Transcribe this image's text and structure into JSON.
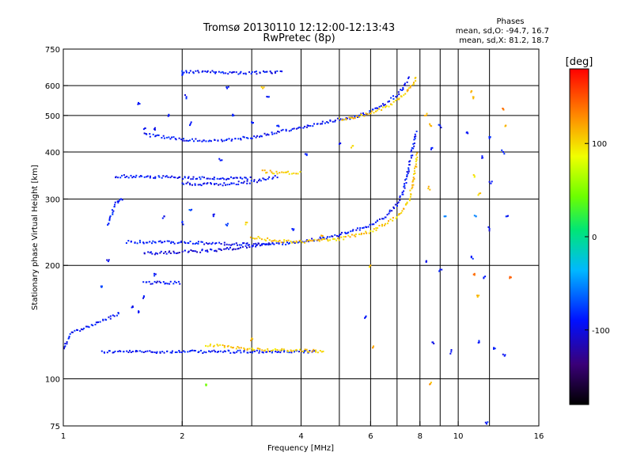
{
  "chart_data": {
    "type": "scatter",
    "title": "Tromsø 20130110 12:12:00-12:13:43",
    "subtitle": "RwPretec (8p)",
    "xlabel": "Frequency [MHz]",
    "ylabel": "Stationary phase Virtual Height [km]",
    "x_scale": "log",
    "y_scale": "log",
    "xlim": [
      1,
      16
    ],
    "ylim": [
      75,
      750
    ],
    "x_ticks": [
      1,
      2,
      4,
      6,
      8,
      10,
      16
    ],
    "x_tick_labels": [
      "1",
      "2",
      "4",
      "6",
      "8",
      "10",
      "16"
    ],
    "x_grid": [
      2,
      3,
      4,
      5,
      6,
      7,
      8,
      9,
      10,
      12
    ],
    "y_ticks": [
      75,
      100,
      200,
      300,
      400,
      500,
      600,
      750
    ],
    "y_tick_labels": [
      "75",
      "100",
      "200",
      "300",
      "400",
      "500",
      "600",
      "750"
    ],
    "y_grid": [
      100,
      200,
      300,
      400,
      500,
      600
    ],
    "grid": true,
    "phase_info": {
      "title": "Phases",
      "line_o": "mean, sd,O: -94.7, 16.7",
      "line_x": "mean, sd,X:  81.2, 18.7"
    },
    "colorbar": {
      "label": "[deg]",
      "range": [
        -180,
        180
      ],
      "ticks": [
        100,
        0,
        -100
      ],
      "tick_labels": [
        "100",
        "0",
        "-100"
      ],
      "colormap": "rainbow-black-to-red"
    },
    "traces": [
      {
        "x": [
          1.25,
          2.0,
          3.0,
          4.0,
          4.4
        ],
        "y": [
          118,
          118,
          118,
          118,
          118
        ],
        "phase": -100
      },
      {
        "x": [
          2.3,
          3.0,
          3.6,
          4.0,
          4.6
        ],
        "y": [
          123,
          120,
          119,
          119,
          118
        ],
        "phase": 110
      },
      {
        "x": [
          1.45,
          2.0,
          2.6,
          3.0,
          3.5,
          4.0,
          4.5,
          5.0,
          5.5,
          6.0,
          6.5,
          7.0,
          7.3,
          7.5,
          7.7,
          7.85
        ],
        "y": [
          231,
          230,
          228,
          227,
          228,
          231,
          236,
          241,
          248,
          256,
          268,
          290,
          320,
          365,
          415,
          455
        ],
        "phase": -100
      },
      {
        "x": [
          1.6,
          2.0,
          2.5,
          3.0,
          3.4
        ],
        "y": [
          215,
          217,
          220,
          225,
          230
        ],
        "phase": -110
      },
      {
        "x": [
          3.0,
          3.5,
          4.0,
          5.0,
          6.0,
          7.0,
          7.5,
          7.75,
          7.9
        ],
        "y": [
          238,
          232,
          231,
          235,
          246,
          268,
          298,
          345,
          400
        ],
        "phase": 110
      },
      {
        "x": [
          1.35,
          2.0,
          2.5,
          3.0
        ],
        "y": [
          345,
          342,
          340,
          340
        ],
        "phase": -100
      },
      {
        "x": [
          2.0,
          2.5,
          3.0,
          3.5
        ],
        "y": [
          330,
          328,
          333,
          345
        ],
        "phase": -105
      },
      {
        "x": [
          3.2,
          3.6,
          4.0
        ],
        "y": [
          355,
          352,
          352
        ],
        "phase": 110
      },
      {
        "x": [
          1.6,
          2.0,
          2.5,
          3.0,
          3.5,
          4.0,
          4.5,
          5.0,
          5.5,
          6.0,
          6.5,
          7.0,
          7.3,
          7.5
        ],
        "y": [
          445,
          432,
          428,
          438,
          452,
          465,
          478,
          488,
          496,
          512,
          535,
          568,
          600,
          635
        ],
        "phase": -100
      },
      {
        "x": [
          5.0,
          5.5,
          6.0,
          6.5,
          7.0,
          7.4,
          7.7,
          7.85
        ],
        "y": [
          488,
          495,
          508,
          523,
          547,
          575,
          610,
          640
        ],
        "phase": 110
      },
      {
        "x": [
          2.0,
          2.4,
          2.8,
          3.2,
          3.6
        ],
        "y": [
          652,
          652,
          648,
          650,
          652
        ],
        "phase": -100
      },
      {
        "x": [
          1.6,
          1.75,
          1.9,
          2.0
        ],
        "y": [
          180,
          180,
          180,
          180
        ],
        "phase": -105
      },
      {
        "x": [
          1.0,
          1.05,
          1.2,
          1.3,
          1.4
        ],
        "y": [
          120,
          132,
          140,
          145,
          150
        ],
        "phase": -100
      },
      {
        "x": [
          1.3,
          1.35,
          1.4
        ],
        "y": [
          255,
          290,
          300
        ],
        "phase": -100
      }
    ],
    "scattered_points": [
      {
        "x": 1.55,
        "y": 540,
        "phase": -100
      },
      {
        "x": 1.6,
        "y": 460,
        "phase": -100
      },
      {
        "x": 1.7,
        "y": 460,
        "phase": -100
      },
      {
        "x": 1.85,
        "y": 500,
        "phase": -100
      },
      {
        "x": 2.0,
        "y": 640,
        "phase": -100
      },
      {
        "x": 2.05,
        "y": 560,
        "phase": -100
      },
      {
        "x": 2.1,
        "y": 475,
        "phase": -100
      },
      {
        "x": 2.5,
        "y": 380,
        "phase": -100
      },
      {
        "x": 2.6,
        "y": 590,
        "phase": -100
      },
      {
        "x": 2.7,
        "y": 500,
        "phase": -100
      },
      {
        "x": 3.0,
        "y": 480,
        "phase": -100
      },
      {
        "x": 3.2,
        "y": 590,
        "phase": 110
      },
      {
        "x": 3.3,
        "y": 560,
        "phase": -100
      },
      {
        "x": 3.5,
        "y": 470,
        "phase": -100
      },
      {
        "x": 1.4,
        "y": 300,
        "phase": -100
      },
      {
        "x": 1.8,
        "y": 270,
        "phase": -100
      },
      {
        "x": 2.1,
        "y": 280,
        "phase": -80
      },
      {
        "x": 2.0,
        "y": 260,
        "phase": -100
      },
      {
        "x": 2.4,
        "y": 270,
        "phase": -100
      },
      {
        "x": 2.6,
        "y": 255,
        "phase": -80
      },
      {
        "x": 2.9,
        "y": 260,
        "phase": 110
      },
      {
        "x": 3.8,
        "y": 250,
        "phase": -100
      },
      {
        "x": 4.1,
        "y": 395,
        "phase": -100
      },
      {
        "x": 1.5,
        "y": 155,
        "phase": -100
      },
      {
        "x": 1.55,
        "y": 150,
        "phase": -100
      },
      {
        "x": 1.6,
        "y": 165,
        "phase": -100
      },
      {
        "x": 1.7,
        "y": 190,
        "phase": -100
      },
      {
        "x": 2.3,
        "y": 96,
        "phase": 40
      },
      {
        "x": 3.0,
        "y": 128,
        "phase": 110
      },
      {
        "x": 1.3,
        "y": 205,
        "phase": -100
      },
      {
        "x": 1.25,
        "y": 175,
        "phase": -80
      },
      {
        "x": 4.5,
        "y": 240,
        "phase": 110
      },
      {
        "x": 5.0,
        "y": 420,
        "phase": -100
      },
      {
        "x": 5.4,
        "y": 415,
        "phase": 110
      },
      {
        "x": 6.0,
        "y": 200,
        "phase": 110
      },
      {
        "x": 6.1,
        "y": 122,
        "phase": 120
      },
      {
        "x": 5.8,
        "y": 145,
        "phase": -100
      },
      {
        "x": 8.3,
        "y": 500,
        "phase": 120
      },
      {
        "x": 8.5,
        "y": 470,
        "phase": 110
      },
      {
        "x": 8.6,
        "y": 410,
        "phase": -100
      },
      {
        "x": 8.4,
        "y": 320,
        "phase": 110
      },
      {
        "x": 8.3,
        "y": 205,
        "phase": -100
      },
      {
        "x": 8.6,
        "y": 125,
        "phase": -100
      },
      {
        "x": 8.5,
        "y": 97,
        "phase": 120
      },
      {
        "x": 9.0,
        "y": 470,
        "phase": -100
      },
      {
        "x": 9.3,
        "y": 270,
        "phase": -60
      },
      {
        "x": 9.0,
        "y": 195,
        "phase": -100
      },
      {
        "x": 9.6,
        "y": 118,
        "phase": -100
      },
      {
        "x": 10.5,
        "y": 450,
        "phase": -100
      },
      {
        "x": 10.8,
        "y": 580,
        "phase": 110
      },
      {
        "x": 10.9,
        "y": 560,
        "phase": 110
      },
      {
        "x": 11.0,
        "y": 345,
        "phase": 100
      },
      {
        "x": 11.1,
        "y": 270,
        "phase": -60
      },
      {
        "x": 11.3,
        "y": 310,
        "phase": 110
      },
      {
        "x": 11.5,
        "y": 390,
        "phase": -100
      },
      {
        "x": 10.8,
        "y": 210,
        "phase": -100
      },
      {
        "x": 11.2,
        "y": 165,
        "phase": 110
      },
      {
        "x": 11.0,
        "y": 190,
        "phase": 140
      },
      {
        "x": 11.6,
        "y": 185,
        "phase": -100
      },
      {
        "x": 11.3,
        "y": 125,
        "phase": -100
      },
      {
        "x": 12.0,
        "y": 435,
        "phase": -100
      },
      {
        "x": 12.1,
        "y": 330,
        "phase": -100
      },
      {
        "x": 12.0,
        "y": 250,
        "phase": -100
      },
      {
        "x": 12.3,
        "y": 120,
        "phase": -100
      },
      {
        "x": 11.8,
        "y": 76,
        "phase": -100
      },
      {
        "x": 13.0,
        "y": 520,
        "phase": 140
      },
      {
        "x": 13.2,
        "y": 470,
        "phase": 120
      },
      {
        "x": 13.0,
        "y": 400,
        "phase": -100
      },
      {
        "x": 13.3,
        "y": 270,
        "phase": -100
      },
      {
        "x": 13.5,
        "y": 185,
        "phase": 140
      },
      {
        "x": 13.1,
        "y": 115,
        "phase": -100
      }
    ]
  }
}
